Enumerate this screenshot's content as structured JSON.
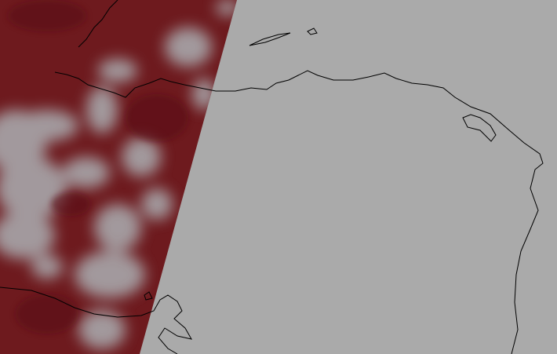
{
  "map": {
    "background_color": "#aaaaaa",
    "swath_color": "#6e1a1e",
    "cloud_color": "#b4c4c8",
    "coastline_color": "#000000"
  }
}
